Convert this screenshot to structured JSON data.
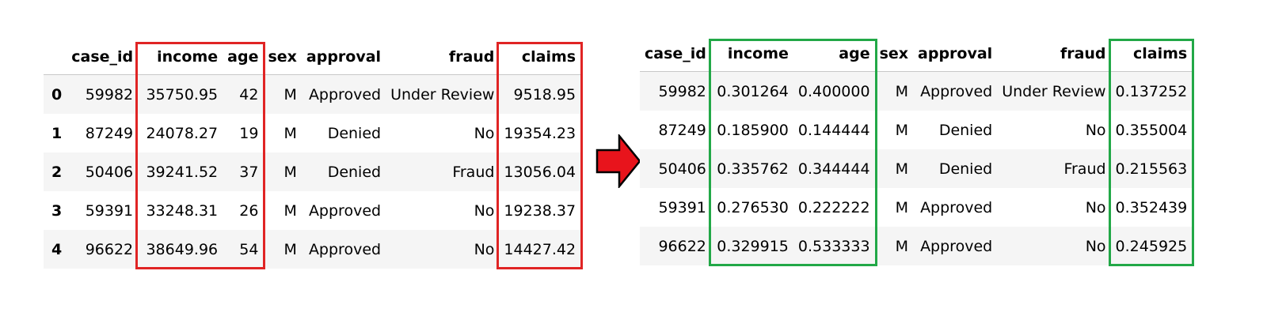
{
  "colors": {
    "highlight_left": "#e02424",
    "highlight_right": "#22a847",
    "arrow": "#e8141c"
  },
  "icons": {
    "transform_arrow": "arrow-right-icon"
  },
  "left_table": {
    "columns": [
      "case_id",
      "income",
      "age",
      "sex",
      "approval",
      "fraud",
      "claims"
    ],
    "rows": [
      {
        "index": "0",
        "cells": [
          "59982",
          "35750.95",
          "42",
          "M",
          "Approved",
          "Under Review",
          "9518.95"
        ]
      },
      {
        "index": "1",
        "cells": [
          "87249",
          "24078.27",
          "19",
          "M",
          "Denied",
          "No",
          "19354.23"
        ]
      },
      {
        "index": "2",
        "cells": [
          "50406",
          "39241.52",
          "37",
          "M",
          "Denied",
          "Fraud",
          "13056.04"
        ]
      },
      {
        "index": "3",
        "cells": [
          "59391",
          "33248.31",
          "26",
          "M",
          "Approved",
          "No",
          "19238.37"
        ]
      },
      {
        "index": "4",
        "cells": [
          "96622",
          "38649.96",
          "54",
          "M",
          "Approved",
          "No",
          "14427.42"
        ]
      }
    ]
  },
  "right_table": {
    "columns": [
      "case_id",
      "income",
      "age",
      "sex",
      "approval",
      "fraud",
      "claims"
    ],
    "rows": [
      {
        "cells": [
          "59982",
          "0.301264",
          "0.400000",
          "M",
          "Approved",
          "Under Review",
          "0.137252"
        ]
      },
      {
        "cells": [
          "87249",
          "0.185900",
          "0.144444",
          "M",
          "Denied",
          "No",
          "0.355004"
        ]
      },
      {
        "cells": [
          "50406",
          "0.335762",
          "0.344444",
          "M",
          "Denied",
          "Fraud",
          "0.215563"
        ]
      },
      {
        "cells": [
          "59391",
          "0.276530",
          "0.222222",
          "M",
          "Approved",
          "No",
          "0.352439"
        ]
      },
      {
        "cells": [
          "96622",
          "0.329915",
          "0.533333",
          "M",
          "Approved",
          "No",
          "0.245925"
        ]
      }
    ]
  }
}
